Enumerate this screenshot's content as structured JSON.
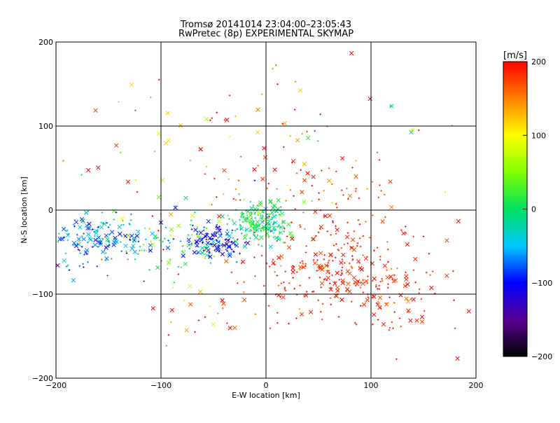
{
  "title": "Tromsø 20141014 23:04:00–23:05:43",
  "subtitle": "RwPretec (8p) EXPERIMENTAL SKYMAP",
  "chart_data": {
    "type": "scatter",
    "title": "Tromsø 20141014 23:04:00–23:05:43",
    "subtitle": "RwPretec (8p) EXPERIMENTAL SKYMAP",
    "xlabel": "E-W location [km]",
    "ylabel": "N-S location [km]",
    "xlim": [
      -200,
      200
    ],
    "ylim": [
      -200,
      200
    ],
    "xticks": [
      -200,
      -100,
      0,
      100,
      200
    ],
    "yticks": [
      -200,
      -100,
      0,
      100,
      200
    ],
    "xtick_labels": [
      "−200",
      "−100",
      "0",
      "100",
      "200"
    ],
    "ytick_labels": [
      "−200",
      "−100",
      "0",
      "100",
      "200"
    ],
    "grid": true,
    "markers": [
      "x",
      "+"
    ],
    "colorbar": {
      "label": "[m/s]",
      "range": [
        -200,
        200
      ],
      "ticks": [
        200,
        100,
        0,
        -100,
        -200
      ],
      "tick_labels": [
        "200",
        "100",
        "0",
        "−100",
        "−200"
      ],
      "colormap": "rainbow (black-purple-blue-cyan-green-yellow-red)"
    },
    "clusters": [
      {
        "cx": -160,
        "cy": -35,
        "sx": 25,
        "sy": 15,
        "n": 170,
        "v": -60,
        "sv": 35
      },
      {
        "cx": -50,
        "cy": -38,
        "sx": 15,
        "sy": 10,
        "n": 110,
        "v": -100,
        "sv": 20
      },
      {
        "cx": -80,
        "cy": -40,
        "sx": 25,
        "sy": 15,
        "n": 60,
        "v": 10,
        "sv": 40
      },
      {
        "cx": -5,
        "cy": -15,
        "sx": 15,
        "sy": 12,
        "n": 200,
        "v": 0,
        "sv": 25
      },
      {
        "cx": 70,
        "cy": -75,
        "sx": 40,
        "sy": 30,
        "n": 280,
        "v": 185,
        "sv": 15
      },
      {
        "cx": 60,
        "cy": 20,
        "sx": 45,
        "sy": 35,
        "n": 70,
        "v": 175,
        "sv": 25
      },
      {
        "cx": -60,
        "cy": 10,
        "sx": 70,
        "sy": 50,
        "n": 70,
        "v": 120,
        "sv": 90
      },
      {
        "cx": 0,
        "cy": 100,
        "sx": 90,
        "sy": 45,
        "n": 45,
        "v": 130,
        "sv": 90
      },
      {
        "cx": -60,
        "cy": -110,
        "sx": 50,
        "sy": 25,
        "n": 30,
        "v": 160,
        "sv": 60
      },
      {
        "cx": 130,
        "cy": -110,
        "sx": 40,
        "sy": 30,
        "n": 40,
        "v": 190,
        "sv": 10
      }
    ]
  }
}
